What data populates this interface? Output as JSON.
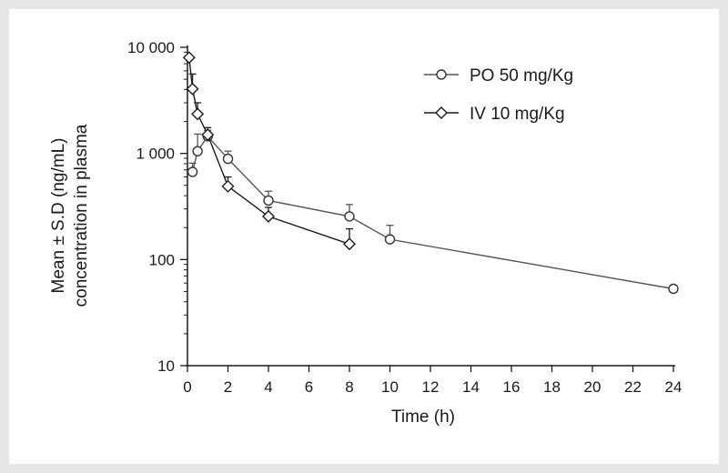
{
  "chart_data": {
    "type": "line",
    "xlabel": "Time (h)",
    "ylabel_line1": "Mean ± S.D (ng/mL)",
    "ylabel_line2": "concentration in plasma",
    "xlim": [
      0,
      24
    ],
    "ylim": [
      10,
      10000
    ],
    "yscale": "log",
    "xticks": [
      0,
      2,
      4,
      6,
      8,
      10,
      12,
      14,
      16,
      18,
      20,
      22,
      24
    ],
    "yticks": [
      10,
      100,
      1000,
      10000
    ],
    "ytick_labels": [
      "10",
      "100",
      "1 000",
      "10 000"
    ],
    "grid": false,
    "legend_position": "top-right",
    "series": [
      {
        "name": "PO 50 mg/Kg",
        "marker": "circle",
        "color": "#555555",
        "x": [
          0.25,
          0.5,
          1,
          2,
          4,
          8,
          10,
          24
        ],
        "y": [
          670,
          1050,
          1450,
          890,
          360,
          255,
          155,
          53
        ],
        "error_upper": [
          810,
          1520,
          1650,
          1050,
          440,
          330,
          210,
          null
        ]
      },
      {
        "name": "IV 10 mg/Kg",
        "marker": "diamond",
        "color": "#1a1a1a",
        "x": [
          0.083,
          0.25,
          0.5,
          1,
          2,
          4,
          8
        ],
        "y": [
          8000,
          4050,
          2350,
          1500,
          490,
          255,
          140
        ],
        "error_upper": [
          null,
          5600,
          3000,
          1750,
          600,
          310,
          195
        ]
      }
    ]
  }
}
